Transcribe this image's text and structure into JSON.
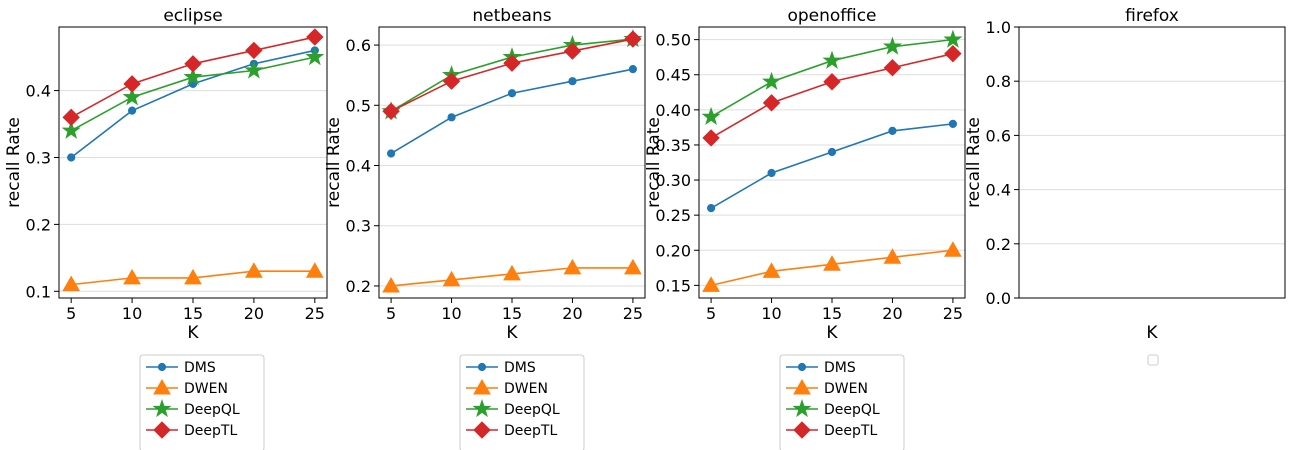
{
  "colors": {
    "DMS": "#1f77b4",
    "DWEN": "#ff7f0e",
    "DeepQL": "#2ca02c",
    "DeepTL": "#d62728",
    "grid": "#dddddd",
    "axis": "#000000"
  },
  "chart_data": [
    {
      "type": "line",
      "title": "eclipse",
      "xlabel": "K",
      "ylabel": "recall Rate",
      "x": [
        5,
        10,
        15,
        20,
        25
      ],
      "xlim": [
        4,
        26
      ],
      "ylim": [
        0.09,
        0.495
      ],
      "yticks": [
        0.1,
        0.2,
        0.3,
        0.4
      ],
      "ytick_labels": [
        "0.1",
        "0.2",
        "0.3",
        "0.4"
      ],
      "grid": "horizontal",
      "legend": "below",
      "series": [
        {
          "name": "DMS",
          "marker": "circle",
          "values": [
            0.3,
            0.37,
            0.41,
            0.44,
            0.46
          ]
        },
        {
          "name": "DWEN",
          "marker": "triangle",
          "values": [
            0.11,
            0.12,
            0.12,
            0.13,
            0.13
          ]
        },
        {
          "name": "DeepQL",
          "marker": "star",
          "values": [
            0.34,
            0.39,
            0.42,
            0.43,
            0.45
          ]
        },
        {
          "name": "DeepTL",
          "marker": "diamond",
          "values": [
            0.36,
            0.41,
            0.44,
            0.46,
            0.48
          ]
        }
      ]
    },
    {
      "type": "line",
      "title": "netbeans",
      "xlabel": "K",
      "ylabel": "recall Rate",
      "x": [
        5,
        10,
        15,
        20,
        25
      ],
      "xlim": [
        4,
        26
      ],
      "ylim": [
        0.18,
        0.63
      ],
      "yticks": [
        0.2,
        0.3,
        0.4,
        0.5,
        0.6
      ],
      "ytick_labels": [
        "0.2",
        "0.3",
        "0.4",
        "0.5",
        "0.6"
      ],
      "grid": "horizontal",
      "legend": "below",
      "series": [
        {
          "name": "DMS",
          "marker": "circle",
          "values": [
            0.42,
            0.48,
            0.52,
            0.54,
            0.56
          ]
        },
        {
          "name": "DWEN",
          "marker": "triangle",
          "values": [
            0.2,
            0.21,
            0.22,
            0.23,
            0.23
          ]
        },
        {
          "name": "DeepQL",
          "marker": "star",
          "values": [
            0.49,
            0.55,
            0.58,
            0.6,
            0.61
          ]
        },
        {
          "name": "DeepTL",
          "marker": "diamond",
          "values": [
            0.49,
            0.54,
            0.57,
            0.59,
            0.61
          ]
        }
      ]
    },
    {
      "type": "line",
      "title": "openoffice",
      "xlabel": "K",
      "ylabel": "recall Rate",
      "x": [
        5,
        10,
        15,
        20,
        25
      ],
      "xlim": [
        4,
        26
      ],
      "ylim": [
        0.132,
        0.518
      ],
      "yticks": [
        0.15,
        0.2,
        0.25,
        0.3,
        0.35,
        0.4,
        0.45,
        0.5
      ],
      "ytick_labels": [
        "0.15",
        "0.20",
        "0.25",
        "0.30",
        "0.35",
        "0.40",
        "0.45",
        "0.50"
      ],
      "grid": "horizontal",
      "legend": "below",
      "series": [
        {
          "name": "DMS",
          "marker": "circle",
          "values": [
            0.26,
            0.31,
            0.34,
            0.37,
            0.38
          ]
        },
        {
          "name": "DWEN",
          "marker": "triangle",
          "values": [
            0.15,
            0.17,
            0.18,
            0.19,
            0.2
          ]
        },
        {
          "name": "DeepQL",
          "marker": "star",
          "values": [
            0.39,
            0.44,
            0.47,
            0.49,
            0.5
          ]
        },
        {
          "name": "DeepTL",
          "marker": "diamond",
          "values": [
            0.36,
            0.41,
            0.44,
            0.46,
            0.48
          ]
        }
      ]
    },
    {
      "type": "line",
      "title": "firefox",
      "xlabel": "K",
      "ylabel": "recall Rate",
      "x": [],
      "xlim": [
        0,
        1
      ],
      "ylim": [
        0,
        1
      ],
      "yticks": [
        0,
        0.2,
        0.4,
        0.6,
        0.8,
        1.0
      ],
      "ytick_labels": [
        "0.0",
        "0.2",
        "0.4",
        "0.6",
        "0.8",
        "1.0"
      ],
      "grid": "horizontal",
      "legend": "below",
      "series": []
    }
  ]
}
